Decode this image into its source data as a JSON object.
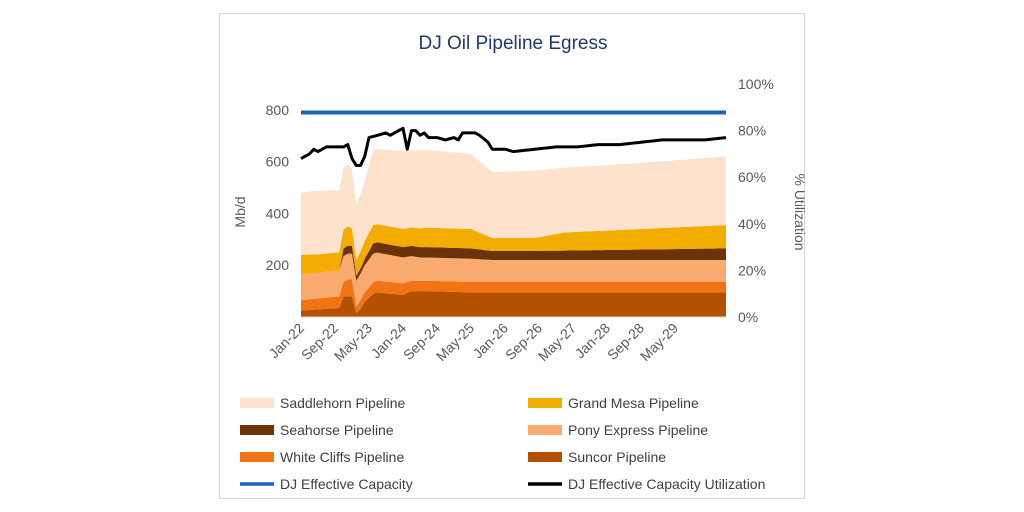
{
  "chart_data": {
    "type": "area",
    "title": "DJ Oil Pipeline Egress",
    "ylabel": "Mb/d",
    "y2label": "% Utilization",
    "ylim": [
      0,
      800
    ],
    "y2lim": [
      0,
      1.0
    ],
    "y_ticks": [
      200,
      400,
      600,
      800
    ],
    "y2_ticks": [
      "0%",
      "20%",
      "40%",
      "60%",
      "80%",
      "100%"
    ],
    "x_tick_labels": [
      "Jan-22",
      "Sep-22",
      "May-23",
      "Jan-24",
      "Sep-24",
      "May-25",
      "Jan-26",
      "Sep-26",
      "May-27",
      "Jan-28",
      "Sep-28",
      "May-29"
    ],
    "x_tick_index": [
      0,
      8,
      16,
      24,
      32,
      40,
      48,
      56,
      64,
      72,
      80,
      88
    ],
    "n_months": 101,
    "stack_keypoints": {
      "Suncor Pipeline": [
        [
          0,
          25
        ],
        [
          9,
          35
        ],
        [
          10,
          80
        ],
        [
          11,
          80
        ],
        [
          12,
          80
        ],
        [
          13,
          15
        ],
        [
          14,
          30
        ],
        [
          15,
          60
        ],
        [
          17,
          90
        ],
        [
          18,
          95
        ],
        [
          24,
          85
        ],
        [
          26,
          100
        ],
        [
          30,
          100
        ],
        [
          40,
          95
        ],
        [
          100,
          95
        ]
      ],
      "White Cliffs Pipeline": [
        [
          0,
          40
        ],
        [
          9,
          45
        ],
        [
          11,
          65
        ],
        [
          12,
          65
        ],
        [
          13,
          25
        ],
        [
          14,
          35
        ],
        [
          15,
          35
        ],
        [
          17,
          45
        ],
        [
          24,
          45
        ],
        [
          26,
          40
        ],
        [
          30,
          40
        ],
        [
          40,
          40
        ],
        [
          45,
          40
        ],
        [
          100,
          40
        ]
      ],
      "Pony Express Pipeline": [
        [
          0,
          100
        ],
        [
          9,
          100
        ],
        [
          11,
          100
        ],
        [
          13,
          100
        ],
        [
          15,
          105
        ],
        [
          17,
          110
        ],
        [
          24,
          100
        ],
        [
          28,
          90
        ],
        [
          35,
          90
        ],
        [
          40,
          90
        ],
        [
          45,
          85
        ],
        [
          100,
          85
        ]
      ],
      "Seahorse Pipeline": [
        [
          0,
          0
        ],
        [
          9,
          0
        ],
        [
          10,
          30
        ],
        [
          12,
          30
        ],
        [
          13,
          20
        ],
        [
          14,
          20
        ],
        [
          15,
          25
        ],
        [
          17,
          40
        ],
        [
          24,
          40
        ],
        [
          30,
          40
        ],
        [
          40,
          40
        ],
        [
          45,
          35
        ],
        [
          55,
          35
        ],
        [
          100,
          45
        ]
      ],
      "Grand Mesa Pipeline": [
        [
          0,
          75
        ],
        [
          4,
          70
        ],
        [
          9,
          70
        ],
        [
          11,
          75
        ],
        [
          13,
          60
        ],
        [
          15,
          70
        ],
        [
          17,
          70
        ],
        [
          25,
          70
        ],
        [
          30,
          75
        ],
        [
          40,
          75
        ],
        [
          45,
          50
        ],
        [
          55,
          50
        ],
        [
          62,
          70
        ],
        [
          100,
          90
        ]
      ],
      "Saddlehorn Pipeline": [
        [
          0,
          240
        ],
        [
          3,
          245
        ],
        [
          5,
          245
        ],
        [
          9,
          240
        ],
        [
          11,
          240
        ],
        [
          13,
          215
        ],
        [
          15,
          230
        ],
        [
          17,
          290
        ],
        [
          24,
          300
        ],
        [
          30,
          300
        ],
        [
          35,
          295
        ],
        [
          40,
          290
        ],
        [
          45,
          255
        ],
        [
          55,
          260
        ],
        [
          62,
          250
        ],
        [
          80,
          255
        ],
        [
          100,
          265
        ]
      ]
    },
    "capacity": [
      [
        0,
        790
      ],
      [
        100,
        790
      ]
    ],
    "utilization": [
      [
        0,
        0.68
      ],
      [
        2,
        0.7
      ],
      [
        3,
        0.72
      ],
      [
        4,
        0.71
      ],
      [
        6,
        0.73
      ],
      [
        8,
        0.73
      ],
      [
        10,
        0.73
      ],
      [
        11,
        0.74
      ],
      [
        12,
        0.68
      ],
      [
        13,
        0.65
      ],
      [
        14,
        0.65
      ],
      [
        15,
        0.69
      ],
      [
        16,
        0.77
      ],
      [
        18,
        0.78
      ],
      [
        20,
        0.79
      ],
      [
        21,
        0.78
      ],
      [
        23,
        0.8
      ],
      [
        24,
        0.81
      ],
      [
        25,
        0.72
      ],
      [
        26,
        0.8
      ],
      [
        27,
        0.8
      ],
      [
        28,
        0.78
      ],
      [
        29,
        0.79
      ],
      [
        30,
        0.77
      ],
      [
        32,
        0.77
      ],
      [
        34,
        0.76
      ],
      [
        36,
        0.77
      ],
      [
        37,
        0.76
      ],
      [
        38,
        0.79
      ],
      [
        41,
        0.79
      ],
      [
        42,
        0.78
      ],
      [
        44,
        0.75
      ],
      [
        45,
        0.72
      ],
      [
        48,
        0.72
      ],
      [
        50,
        0.71
      ],
      [
        55,
        0.72
      ],
      [
        60,
        0.73
      ],
      [
        65,
        0.73
      ],
      [
        70,
        0.74
      ],
      [
        75,
        0.74
      ],
      [
        80,
        0.75
      ],
      [
        85,
        0.76
      ],
      [
        90,
        0.76
      ],
      [
        95,
        0.76
      ],
      [
        100,
        0.77
      ]
    ],
    "series": [
      {
        "name": "Suncor Pipeline",
        "kind": "area",
        "color": "#b35100"
      },
      {
        "name": "White Cliffs Pipeline",
        "kind": "area",
        "color": "#f07414"
      },
      {
        "name": "Pony Express Pipeline",
        "kind": "area",
        "color": "#f9aa6e"
      },
      {
        "name": "Seahorse Pipeline",
        "kind": "area",
        "color": "#6b3307"
      },
      {
        "name": "Grand Mesa Pipeline",
        "kind": "area",
        "color": "#f2ad00"
      },
      {
        "name": "Saddlehorn Pipeline",
        "kind": "area",
        "color": "#fde2cd"
      },
      {
        "name": "DJ Effective Capacity",
        "kind": "line",
        "color": "#1e63b8"
      },
      {
        "name": "DJ Effective Capacity Utilization",
        "kind": "line",
        "color": "#000000"
      }
    ],
    "legend": [
      {
        "label": "Saddlehorn Pipeline",
        "color": "#fde2cd",
        "kind": "area"
      },
      {
        "label": "Grand Mesa Pipeline",
        "color": "#f2ad00",
        "kind": "area"
      },
      {
        "label": "Seahorse Pipeline",
        "color": "#6b3307",
        "kind": "area"
      },
      {
        "label": "Pony Express Pipeline",
        "color": "#f9aa6e",
        "kind": "area"
      },
      {
        "label": "White Cliffs Pipeline",
        "color": "#f07414",
        "kind": "area"
      },
      {
        "label": "Suncor Pipeline",
        "color": "#b35100",
        "kind": "area"
      },
      {
        "label": "DJ Effective Capacity",
        "color": "#1e63b8",
        "kind": "line"
      },
      {
        "label": "DJ Effective Capacity Utilization",
        "color": "#000000",
        "kind": "line"
      }
    ]
  }
}
